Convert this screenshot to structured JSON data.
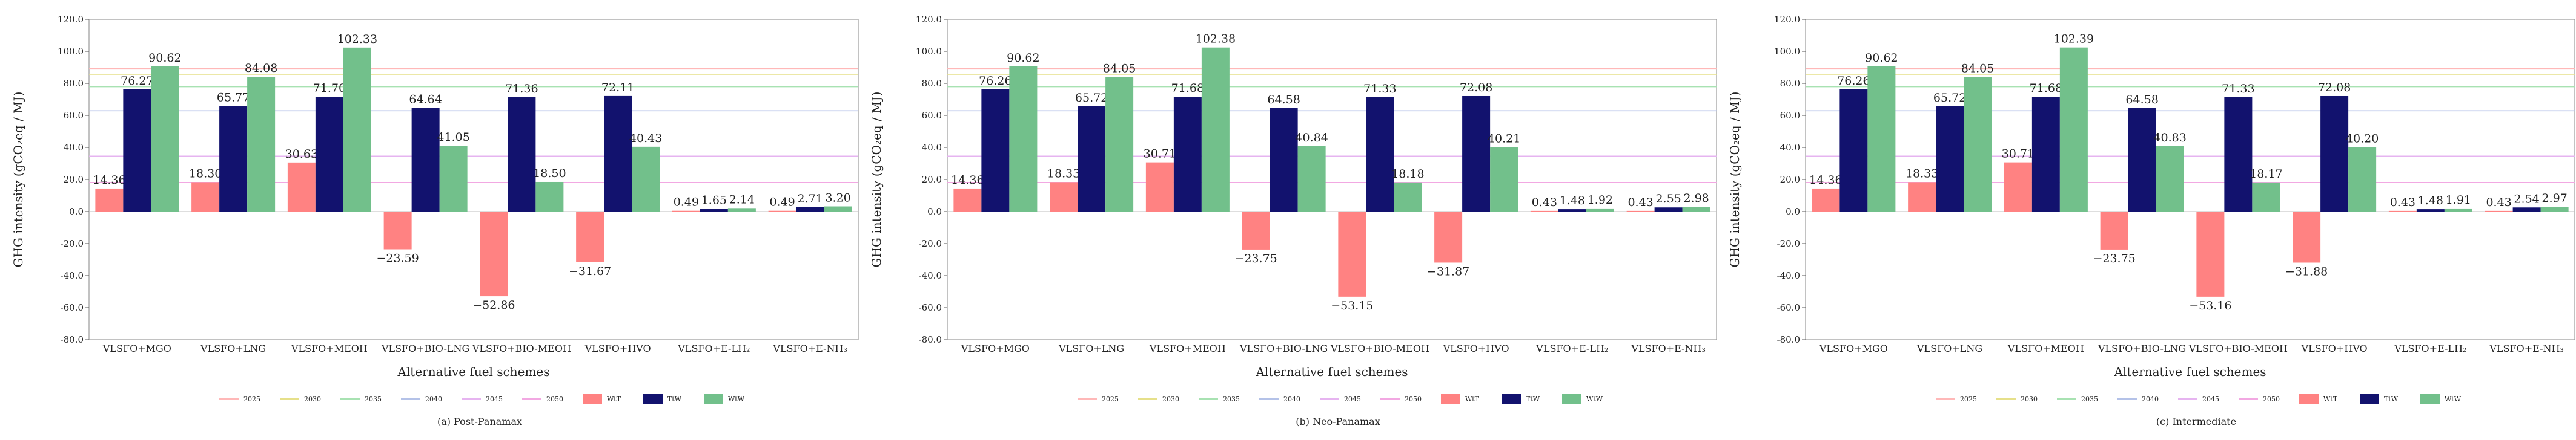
{
  "chart_data": [
    {
      "type": "bar",
      "caption": "(a) Post-Panamax",
      "ylabel": "GHG intensity (gCO₂eq / MJ)",
      "xlabel": "Alternative fuel schemes",
      "ylim": [
        -80,
        120
      ],
      "yticks": [
        "-80.0",
        "-60.0",
        "-40.0",
        "-20.0",
        "0.0",
        "20.0",
        "40.0",
        "60.0",
        "80.0",
        "100.0",
        "120.0"
      ],
      "categories": [
        "VLSFO+MGO",
        "VLSFO+LNG",
        "VLSFO+MEOH",
        "VLSFO+BIO-LNG",
        "VLSFO+BIO-MEOH",
        "VLSFO+HVO",
        "VLSFO+E-LH₂",
        "VLSFO+E-NH₃"
      ],
      "series": [
        {
          "name": "WtT",
          "values": [
            14.36,
            18.3,
            30.63,
            -23.59,
            -52.86,
            -31.67,
            0.49,
            0.49
          ],
          "labels": [
            "14.36",
            "18.30",
            "30.63",
            "−23.59",
            "−52.86",
            "−31.67",
            "0.49",
            "0.49"
          ]
        },
        {
          "name": "TtW",
          "values": [
            76.27,
            65.77,
            71.7,
            64.64,
            71.36,
            72.11,
            1.65,
            2.71
          ],
          "labels": [
            "76.27",
            "65.77",
            "71.70",
            "64.64",
            "71.36",
            "72.11",
            "1.65",
            "2.71"
          ]
        },
        {
          "name": "WtW",
          "values": [
            90.62,
            84.08,
            102.33,
            41.05,
            18.5,
            40.43,
            2.14,
            3.2
          ],
          "labels": [
            "90.62",
            "84.08",
            "102.33",
            "41.05",
            "18.50",
            "40.43",
            "2.14",
            "3.20"
          ]
        }
      ],
      "reference_lines": [
        {
          "name": "2025",
          "value": 89.3
        },
        {
          "name": "2030",
          "value": 85.7
        },
        {
          "name": "2035",
          "value": 77.9
        },
        {
          "name": "2040",
          "value": 62.9
        },
        {
          "name": "2045",
          "value": 34.6
        },
        {
          "name": "2050",
          "value": 18.2
        }
      ]
    },
    {
      "type": "bar",
      "caption": "(b) Neo-Panamax",
      "ylabel": "GHG intensity (gCO₂eq / MJ)",
      "xlabel": "Alternative fuel schemes",
      "ylim": [
        -80,
        120
      ],
      "yticks": [
        "-80.0",
        "-60.0",
        "-40.0",
        "-20.0",
        "0.0",
        "20.0",
        "40.0",
        "60.0",
        "80.0",
        "100.0",
        "120.0"
      ],
      "categories": [
        "VLSFO+MGO",
        "VLSFO+LNG",
        "VLSFO+MEOH",
        "VLSFO+BIO-LNG",
        "VLSFO+BIO-MEOH",
        "VLSFO+HVO",
        "VLSFO+E-LH₂",
        "VLSFO+E-NH₃"
      ],
      "series": [
        {
          "name": "WtT",
          "values": [
            14.36,
            18.33,
            30.71,
            -23.75,
            -53.15,
            -31.87,
            0.43,
            0.43
          ],
          "labels": [
            "14.36",
            "18.33",
            "30.71",
            "−23.75",
            "−53.15",
            "−31.87",
            "0.43",
            "0.43"
          ]
        },
        {
          "name": "TtW",
          "values": [
            76.26,
            65.72,
            71.68,
            64.58,
            71.33,
            72.08,
            1.48,
            2.55
          ],
          "labels": [
            "76.26",
            "65.72",
            "71.68",
            "64.58",
            "71.33",
            "72.08",
            "1.48",
            "2.55"
          ]
        },
        {
          "name": "WtW",
          "values": [
            90.62,
            84.05,
            102.38,
            40.84,
            18.18,
            40.21,
            1.92,
            2.98
          ],
          "labels": [
            "90.62",
            "84.05",
            "102.38",
            "40.84",
            "18.18",
            "40.21",
            "1.92",
            "2.98"
          ]
        }
      ],
      "reference_lines": [
        {
          "name": "2025",
          "value": 89.3
        },
        {
          "name": "2030",
          "value": 85.7
        },
        {
          "name": "2035",
          "value": 77.9
        },
        {
          "name": "2040",
          "value": 62.9
        },
        {
          "name": "2045",
          "value": 34.6
        },
        {
          "name": "2050",
          "value": 18.2
        }
      ]
    },
    {
      "type": "bar",
      "caption": "(c) Intermediate",
      "ylabel": "GHG intensity (gCO₂eq / MJ)",
      "xlabel": "Alternative fuel schemes",
      "ylim": [
        -80,
        120
      ],
      "yticks": [
        "-80.0",
        "-60.0",
        "-40.0",
        "-20.0",
        "0.0",
        "20.0",
        "40.0",
        "60.0",
        "80.0",
        "100.0",
        "120.0"
      ],
      "categories": [
        "VLSFO+MGO",
        "VLSFO+LNG",
        "VLSFO+MEOH",
        "VLSFO+BIO-LNG",
        "VLSFO+BIO-MEOH",
        "VLSFO+HVO",
        "VLSFO+E-LH₂",
        "VLSFO+E-NH₃"
      ],
      "series": [
        {
          "name": "WtT",
          "values": [
            14.36,
            18.33,
            30.71,
            -23.75,
            -53.16,
            -31.88,
            0.43,
            0.43
          ],
          "labels": [
            "14.36",
            "18.33",
            "30.71",
            "−23.75",
            "−53.16",
            "−31.88",
            "0.43",
            "0.43"
          ]
        },
        {
          "name": "TtW",
          "values": [
            76.26,
            65.72,
            71.68,
            64.58,
            71.33,
            72.08,
            1.48,
            2.54
          ],
          "labels": [
            "76.26",
            "65.72",
            "71.68",
            "64.58",
            "71.33",
            "72.08",
            "1.48",
            "2.54"
          ]
        },
        {
          "name": "WtW",
          "values": [
            90.62,
            84.05,
            102.39,
            40.83,
            18.17,
            40.2,
            1.91,
            2.97
          ],
          "labels": [
            "90.62",
            "84.05",
            "102.39",
            "40.83",
            "18.17",
            "40.20",
            "1.91",
            "2.97"
          ]
        }
      ],
      "reference_lines": [
        {
          "name": "2025",
          "value": 89.3
        },
        {
          "name": "2030",
          "value": 85.7
        },
        {
          "name": "2035",
          "value": 77.9
        },
        {
          "name": "2040",
          "value": 62.9
        },
        {
          "name": "2045",
          "value": 34.6
        },
        {
          "name": "2050",
          "value": 18.2
        }
      ]
    }
  ],
  "colors": {
    "WtT": "#ff8282",
    "TtW": "#12126e",
    "WtW": "#72c08b",
    "2025": "#ffb8b8",
    "2030": "#e6e08a",
    "2035": "#a8e2b2",
    "2040": "#b4c2e8",
    "2045": "#e6b4f0",
    "2050": "#f2a8e2"
  }
}
